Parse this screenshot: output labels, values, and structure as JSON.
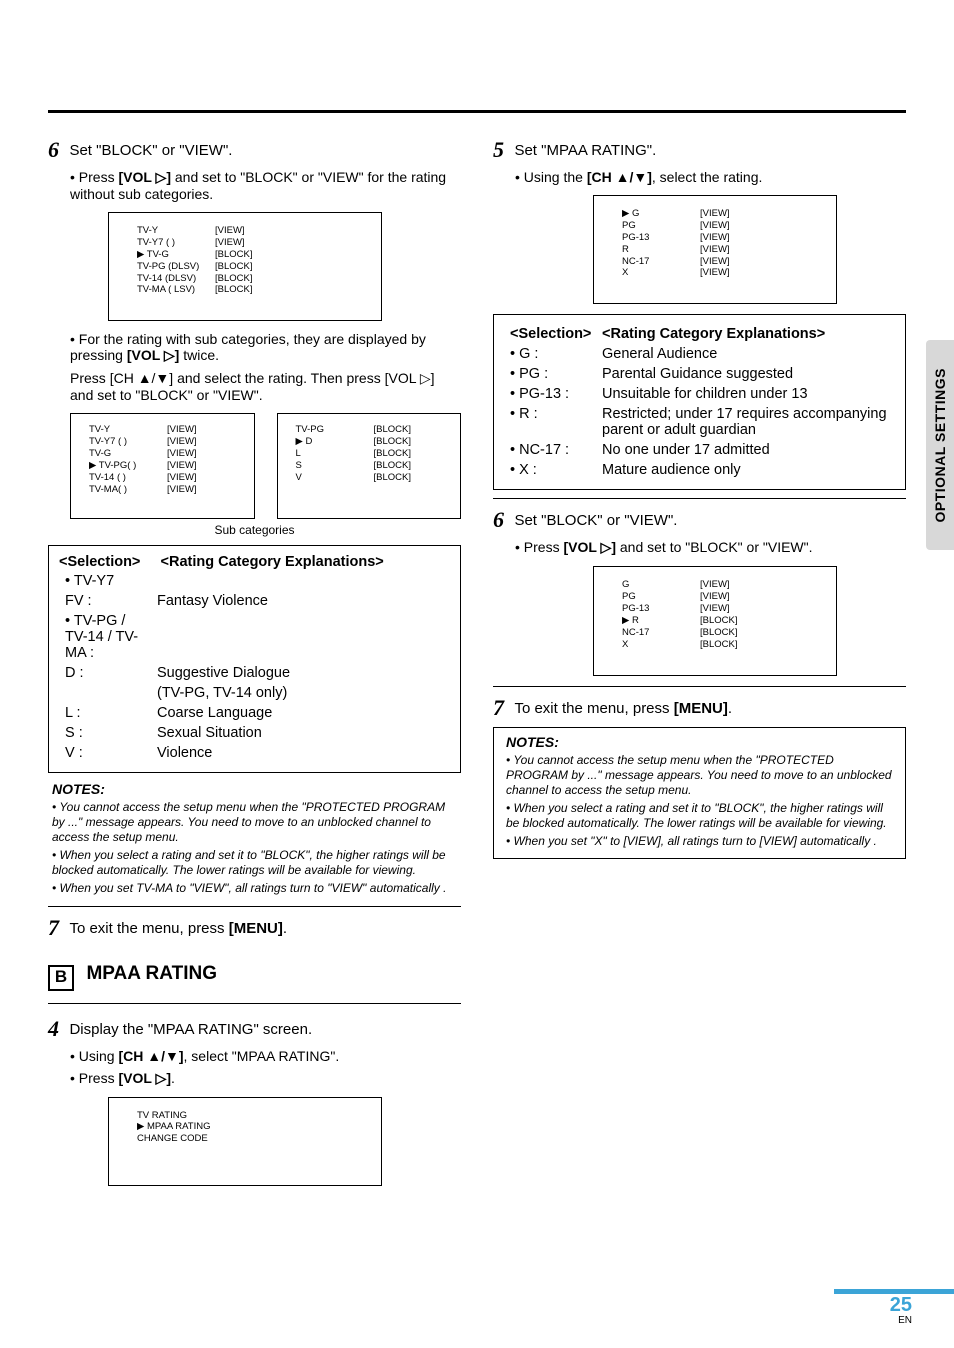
{
  "left": {
    "step6": {
      "title": "Set \"BLOCK\" or \"VIEW\".",
      "bullet1a": "• Press ",
      "bullet1key": "[VOL ▷]",
      "bullet1b": " and set to \"BLOCK\" or \"VIEW\" for the rating without sub categories.",
      "box1": [
        [
          "TV-Y",
          "[VIEW]"
        ],
        [
          "TV-Y7 (        )",
          "[VIEW]"
        ],
        [
          "▶ TV-G",
          "[BLOCK]"
        ],
        [
          "  TV-PG (DLSV)",
          "[BLOCK]"
        ],
        [
          "  TV-14 (DLSV)",
          "[BLOCK]"
        ],
        [
          "  TV-MA (  LSV)",
          "[BLOCK]"
        ]
      ],
      "para2a": "• For the rating with sub categories, they are displayed by pressing ",
      "para2key": "[VOL ▷]",
      "para2b": " twice.",
      "para3a": "Press ",
      "para3key": "[CH ▲/▼]",
      "para3b": " and select the rating. Then press ",
      "para3key2": "[VOL ▷]",
      "para3c": " and set to \"BLOCK\" or \"VIEW\".",
      "dualL": [
        [
          "TV-Y",
          "[VIEW]"
        ],
        [
          "TV-Y7 (       )",
          "[VIEW]"
        ],
        [
          "TV-G",
          "[VIEW]"
        ],
        [
          "▶ TV-PG(       )",
          "[VIEW]"
        ],
        [
          "TV-14 (       )",
          "[VIEW]"
        ],
        [
          "TV-MA(       )",
          "[VIEW]"
        ]
      ],
      "dualR": [
        [
          "TV-PG",
          "[BLOCK]"
        ],
        [
          "",
          ""
        ],
        [
          "▶ D",
          "[BLOCK]"
        ],
        [
          "  L",
          "[BLOCK]"
        ],
        [
          "  S",
          "[BLOCK]"
        ],
        [
          "  V",
          "[BLOCK]"
        ]
      ],
      "subcap": "Sub categories",
      "sel": {
        "head": "<Selection>      <Rating Category Explanations>",
        "rows": [
          [
            "• TV-Y7",
            ""
          ],
          [
            "    FV :",
            "Fantasy Violence"
          ],
          [
            "• TV-PG / TV-14 / TV-MA :",
            ""
          ],
          [
            "    D :",
            "Suggestive Dialogue"
          ],
          [
            "",
            "(TV-PG, TV-14 only)"
          ],
          [
            "    L :",
            "Coarse Language"
          ],
          [
            "    S :",
            "Sexual Situation"
          ],
          [
            "    V :",
            "Violence"
          ]
        ]
      },
      "notesTitle": "NOTES:",
      "notes": [
        "• You cannot access the setup menu when the \"PROTECTED PROGRAM by ...\" message appears. You need to move to an unblocked channel to access the setup menu.",
        "• When you select a rating and set it to \"BLOCK\", the higher ratings will be blocked automatically. The lower ratings will be available for viewing.",
        "• When you set TV-MA to \"VIEW\", all ratings turn to \"VIEW\" automatically ."
      ]
    },
    "step7": {
      "pre": "To exit the menu, press ",
      "key": "[MENU]",
      "post": "."
    },
    "sectionB": {
      "letter": "B",
      "title": "MPAA RATING"
    },
    "step4": {
      "title": "Display the \"MPAA RATING\" screen.",
      "b1a": "• Using ",
      "b1key": "[CH ▲/▼]",
      "b1b": ", select \"MPAA RATING\".",
      "b2a": "• Press ",
      "b2key": "[VOL ▷]",
      "b2b": ".",
      "box": [
        "   TV RATING",
        "▶ MPAA RATING",
        "   CHANGE CODE"
      ]
    }
  },
  "right": {
    "step5": {
      "title": "Set \"MPAA RATING\".",
      "b1a": "• Using the ",
      "b1key": "[CH ▲/▼]",
      "b1b": ", select the rating.",
      "box": [
        [
          "▶ G",
          "[VIEW]"
        ],
        [
          "  PG",
          "[VIEW]"
        ],
        [
          "  PG-13",
          "[VIEW]"
        ],
        [
          "  R",
          "[VIEW]"
        ],
        [
          "  NC-17",
          "[VIEW]"
        ],
        [
          "  X",
          "[VIEW]"
        ]
      ],
      "sel": {
        "headL": "<Selection>",
        "headR": "<Rating Category Explanations>",
        "rows": [
          [
            "• G :",
            "General Audience"
          ],
          [
            "• PG :",
            "Parental Guidance suggested"
          ],
          [
            "• PG-13 :",
            "Unsuitable for children under 13"
          ],
          [
            "• R :",
            "Restricted; under 17 requires accompanying parent or adult guardian"
          ],
          [
            "• NC-17 :",
            "No one under 17 admitted"
          ],
          [
            "• X :",
            "Mature audience only"
          ]
        ]
      }
    },
    "step6": {
      "title": "Set \"BLOCK\" or \"VIEW\".",
      "b1a": "• Press ",
      "b1key": "[VOL ▷]",
      "b1b": " and set to \"BLOCK\" or \"VIEW\".",
      "box": [
        [
          "  G",
          "[VIEW]"
        ],
        [
          "  PG",
          "[VIEW]"
        ],
        [
          "  PG-13",
          "[VIEW]"
        ],
        [
          "▶ R",
          "[BLOCK]"
        ],
        [
          "  NC-17",
          "[BLOCK]"
        ],
        [
          "  X",
          "[BLOCK]"
        ]
      ]
    },
    "step7": {
      "pre": "To exit the menu, press ",
      "key": "[MENU]",
      "post": "."
    },
    "notesTitle": "NOTES:",
    "notes": [
      "• You cannot access the setup menu when the \"PROTECTED PROGRAM by ...\" message appears. You need to move to an unblocked channel to access the setup menu.",
      "• When you select a rating and set it to \"BLOCK\", the higher ratings will be blocked automatically. The lower ratings will be available for viewing.",
      "• When you set \"X\" to [VIEW], all ratings turn to [VIEW] automatically ."
    ]
  },
  "side": "OPTIONAL SETTINGS",
  "page": "25",
  "en": "EN"
}
